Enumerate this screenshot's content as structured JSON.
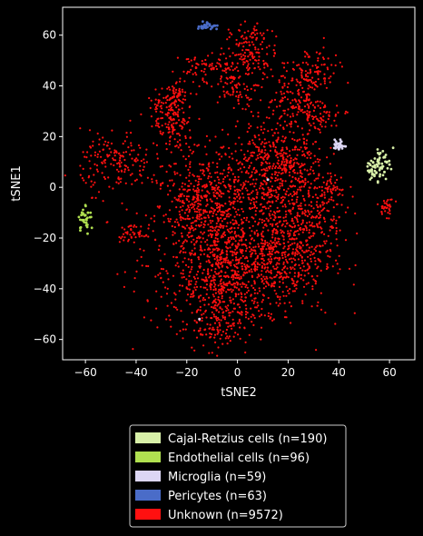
{
  "chart_data": {
    "type": "scatter",
    "title": "",
    "xlabel": "tSNE2",
    "ylabel": "tSNE1",
    "xlim": [
      -69,
      70
    ],
    "ylim": [
      -68,
      71
    ],
    "x_ticks": [
      -60,
      -40,
      -20,
      0,
      20,
      40,
      60
    ],
    "y_ticks": [
      -60,
      -40,
      -20,
      0,
      20,
      40,
      60
    ],
    "grid": false,
    "legend_position": "below",
    "series": [
      {
        "name": "Cajal-Retzius cells (n=190)",
        "color": "#d8f0a8",
        "clusters": [
          [
            57,
            10,
            2.5,
            3
          ],
          [
            54,
            7,
            2,
            2
          ]
        ],
        "points": [
          [
            56,
            13
          ],
          [
            58,
            12
          ],
          [
            59,
            10
          ],
          [
            55,
            9
          ],
          [
            53,
            7
          ],
          [
            57,
            8
          ],
          [
            60,
            9
          ],
          [
            54,
            5
          ],
          [
            52,
            6
          ],
          [
            58,
            6
          ]
        ]
      },
      {
        "name": "Endothelial cells (n=96)",
        "color": "#b0e050",
        "clusters": [
          [
            -60,
            -12,
            1.2,
            2.5
          ]
        ],
        "points": [
          [
            -59,
            -10
          ],
          [
            -61,
            -13
          ],
          [
            -62,
            -16
          ],
          [
            -60,
            -11
          ],
          [
            -62,
            -17
          ]
        ]
      },
      {
        "name": "Microglia (n=59)",
        "color": "#dcd6f4",
        "clusters": [
          [
            40,
            17,
            1.2,
            1
          ]
        ],
        "points": [
          [
            39,
            17
          ],
          [
            41,
            16
          ],
          [
            40,
            15
          ],
          [
            41,
            18
          ],
          [
            12,
            3
          ],
          [
            -15,
            -52
          ]
        ]
      },
      {
        "name": "Pericytes (n=63)",
        "color": "#4a6cc8",
        "clusters": [
          [
            -12,
            63.5,
            2,
            0.8
          ]
        ],
        "points": [
          [
            -14,
            63
          ],
          [
            -11,
            64
          ],
          [
            -10,
            63
          ],
          [
            -13,
            64
          ],
          [
            -12,
            65
          ]
        ]
      },
      {
        "name": "Unknown (n=9572)",
        "color": "#ff1010",
        "clusters": [
          [
            -5,
            -18,
            16,
            18
          ],
          [
            -3,
            -35,
            11,
            10
          ],
          [
            -8,
            -52,
            6,
            5
          ],
          [
            18,
            -28,
            10,
            10
          ],
          [
            28,
            -10,
            7,
            10
          ],
          [
            10,
            5,
            9,
            8
          ],
          [
            20,
            15,
            7,
            7
          ],
          [
            -16,
            -5,
            6,
            8
          ],
          [
            -48,
            10,
            7,
            6
          ],
          [
            -25,
            22,
            4,
            5
          ],
          [
            -28,
            30,
            4,
            4
          ],
          [
            -24,
            38,
            3,
            3
          ],
          [
            -42,
            -18,
            3,
            1.5
          ],
          [
            37,
            0,
            2,
            2
          ],
          [
            59,
            -8,
            1.5,
            1.8
          ],
          [
            30,
            45,
            5,
            5
          ],
          [
            22,
            35,
            5,
            6
          ],
          [
            5,
            50,
            5,
            4
          ],
          [
            -13,
            47,
            5,
            3
          ],
          [
            5,
            58,
            4,
            3
          ],
          [
            0,
            40,
            4,
            4
          ],
          [
            33,
            28,
            4,
            3
          ]
        ]
      }
    ]
  }
}
